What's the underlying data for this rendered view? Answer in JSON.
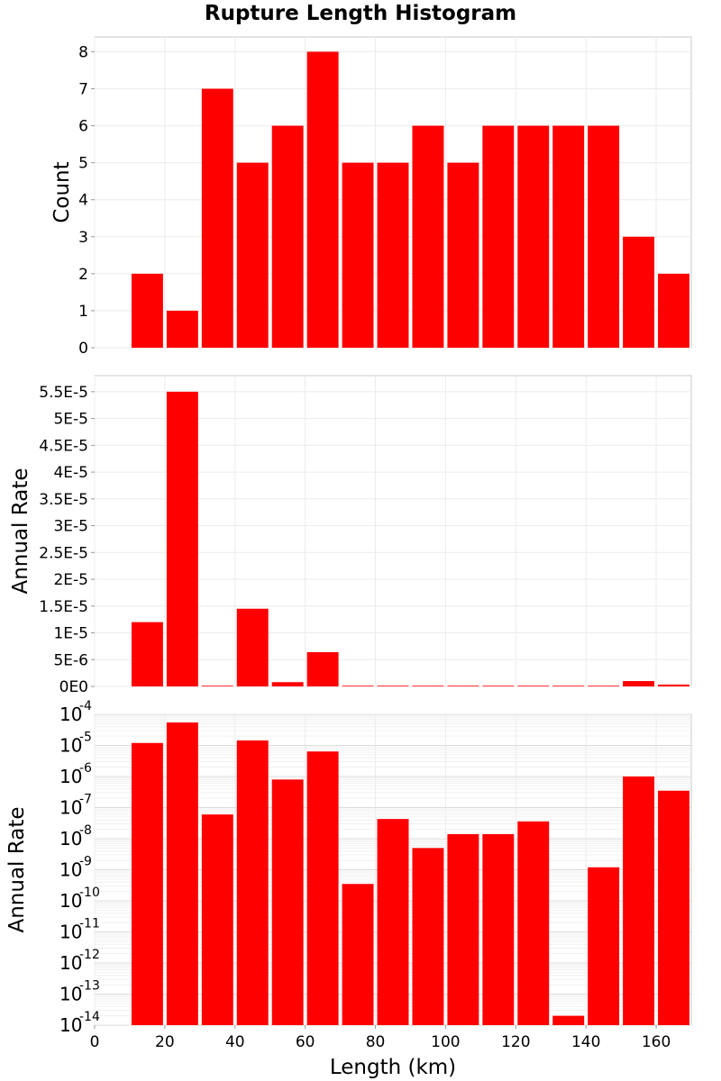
{
  "title": "Rupture Length Histogram",
  "chart_data": [
    {
      "type": "bar",
      "panel": "top",
      "ylabel": "Count",
      "ylim": [
        0,
        8.4
      ],
      "yticks": [
        0,
        1,
        2,
        3,
        4,
        5,
        6,
        7,
        8
      ],
      "ytick_labels": [
        "0",
        "1",
        "2",
        "3",
        "4",
        "5",
        "6",
        "7",
        "8"
      ],
      "grid": true,
      "bar_color": "#ff0000",
      "x": [
        15,
        25,
        35,
        45,
        55,
        65,
        75,
        85,
        95,
        105,
        115,
        125,
        135,
        145,
        155,
        165
      ],
      "values": [
        2,
        1,
        7,
        5,
        6,
        8,
        5,
        5,
        6,
        5,
        6,
        6,
        6,
        6,
        3,
        2
      ]
    },
    {
      "type": "bar",
      "panel": "middle",
      "ylabel": "Annual Rate",
      "ylim": [
        0,
        5.8e-05
      ],
      "yticks": [
        0,
        5e-06,
        1e-05,
        1.5e-05,
        2e-05,
        2.5e-05,
        3e-05,
        3.5e-05,
        4e-05,
        4.5e-05,
        5e-05,
        5.5e-05
      ],
      "ytick_labels": [
        "0E0",
        "5E-6",
        "1E-5",
        "1.5E-5",
        "2E-5",
        "2.5E-5",
        "3E-5",
        "3.5E-5",
        "4E-5",
        "4.5E-5",
        "5E-5",
        "5.5E-5"
      ],
      "grid": true,
      "bar_color": "#ff0000",
      "x": [
        15,
        25,
        35,
        45,
        55,
        65,
        75,
        85,
        95,
        105,
        115,
        125,
        135,
        145,
        155,
        165
      ],
      "values": [
        1.2e-05,
        5.5e-05,
        6e-08,
        1.45e-05,
        8e-07,
        6.4e-06,
        3.5e-10,
        4.3e-08,
        5e-09,
        1.4e-08,
        1.4e-08,
        3.6e-08,
        2e-14,
        1.2e-09,
        1e-06,
        3.5e-07
      ]
    },
    {
      "type": "bar",
      "panel": "bottom",
      "ylabel": "Annual Rate",
      "yscale": "log",
      "ylim": [
        1e-14,
        0.0001
      ],
      "ytick_exponents": [
        "-14",
        "-13",
        "-12",
        "-11",
        "-10",
        "-9",
        "-8",
        "-7",
        "-6",
        "-5",
        "-4"
      ],
      "ytick_base": "10",
      "grid": true,
      "bar_color": "#ff0000",
      "xlabel": "Length (km)",
      "xlim": [
        0,
        170
      ],
      "xticks": [
        0,
        20,
        40,
        60,
        80,
        100,
        120,
        140,
        160
      ],
      "xtick_labels": [
        "0",
        "20",
        "40",
        "60",
        "80",
        "100",
        "120",
        "140",
        "160"
      ],
      "x": [
        15,
        25,
        35,
        45,
        55,
        65,
        75,
        85,
        95,
        105,
        115,
        125,
        135,
        145,
        155,
        165
      ],
      "values": [
        1.2e-05,
        5.5e-05,
        6e-08,
        1.45e-05,
        8e-07,
        6.4e-06,
        3.5e-10,
        4.3e-08,
        5e-09,
        1.4e-08,
        1.4e-08,
        3.6e-08,
        2e-14,
        1.2e-09,
        1e-06,
        3.5e-07
      ]
    }
  ]
}
